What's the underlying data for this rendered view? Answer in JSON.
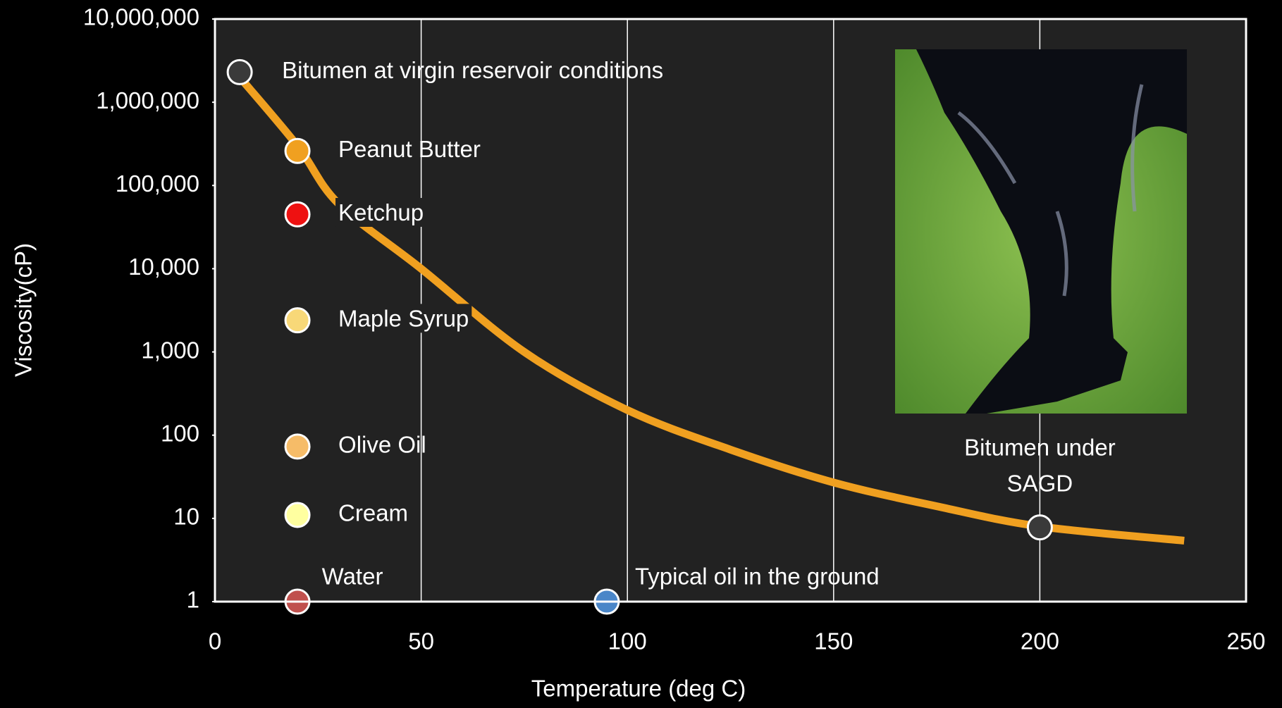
{
  "chart_data": {
    "type": "line",
    "xlabel": "Temperature (deg C)",
    "ylabel": "Viscosity(cP)",
    "xlim": [
      0,
      250
    ],
    "xticks": [
      0,
      50,
      100,
      150,
      200,
      250
    ],
    "ylim": [
      1,
      10000000
    ],
    "ylog": true,
    "yticks": [
      {
        "value": 1,
        "label": "1"
      },
      {
        "value": 10,
        "label": "10"
      },
      {
        "value": 100,
        "label": "100"
      },
      {
        "value": 1000,
        "label": "1,000"
      },
      {
        "value": 10000,
        "label": "10,000"
      },
      {
        "value": 100000,
        "label": "100,000"
      },
      {
        "value": 1000000,
        "label": "1,000,000"
      },
      {
        "value": 10000000,
        "label": "10,000,000"
      }
    ],
    "grid": "x",
    "curve": {
      "color": "#f0a020",
      "x": [
        6,
        20,
        30,
        50,
        75,
        100,
        125,
        150,
        175,
        200,
        235
      ],
      "values": [
        2000000,
        300000,
        60000,
        10000,
        1000,
        200,
        67,
        27,
        14,
        8,
        5.4
      ]
    },
    "points": [
      {
        "label": "Bitumen at virgin reservoir conditions",
        "color": "#3a3a3a",
        "x": 6,
        "y": 2300000
      },
      {
        "label": "Peanut Butter",
        "color": "#f0a020",
        "x": 20,
        "y": 260000
      },
      {
        "label": "Ketchup",
        "color": "#ee1111",
        "x": 20,
        "y": 45000
      },
      {
        "label": "Maple Syrup",
        "color": "#f8d878",
        "x": 20,
        "y": 2400
      },
      {
        "label": "Olive Oil",
        "color": "#f6bc68",
        "x": 20,
        "y": 73
      },
      {
        "label": "Cream",
        "color": "#ffffa0",
        "x": 20,
        "y": 11
      },
      {
        "label": "Water",
        "color": "#c0504d",
        "x": 20,
        "y": 1
      },
      {
        "label": "Typical oil in the ground",
        "color": "#4a86c8",
        "x": 95,
        "y": 1
      },
      {
        "label": [
          "Bitumen under",
          "SAGD"
        ],
        "color": "#3a3a3a",
        "x": 200,
        "y": 7.8
      }
    ]
  }
}
